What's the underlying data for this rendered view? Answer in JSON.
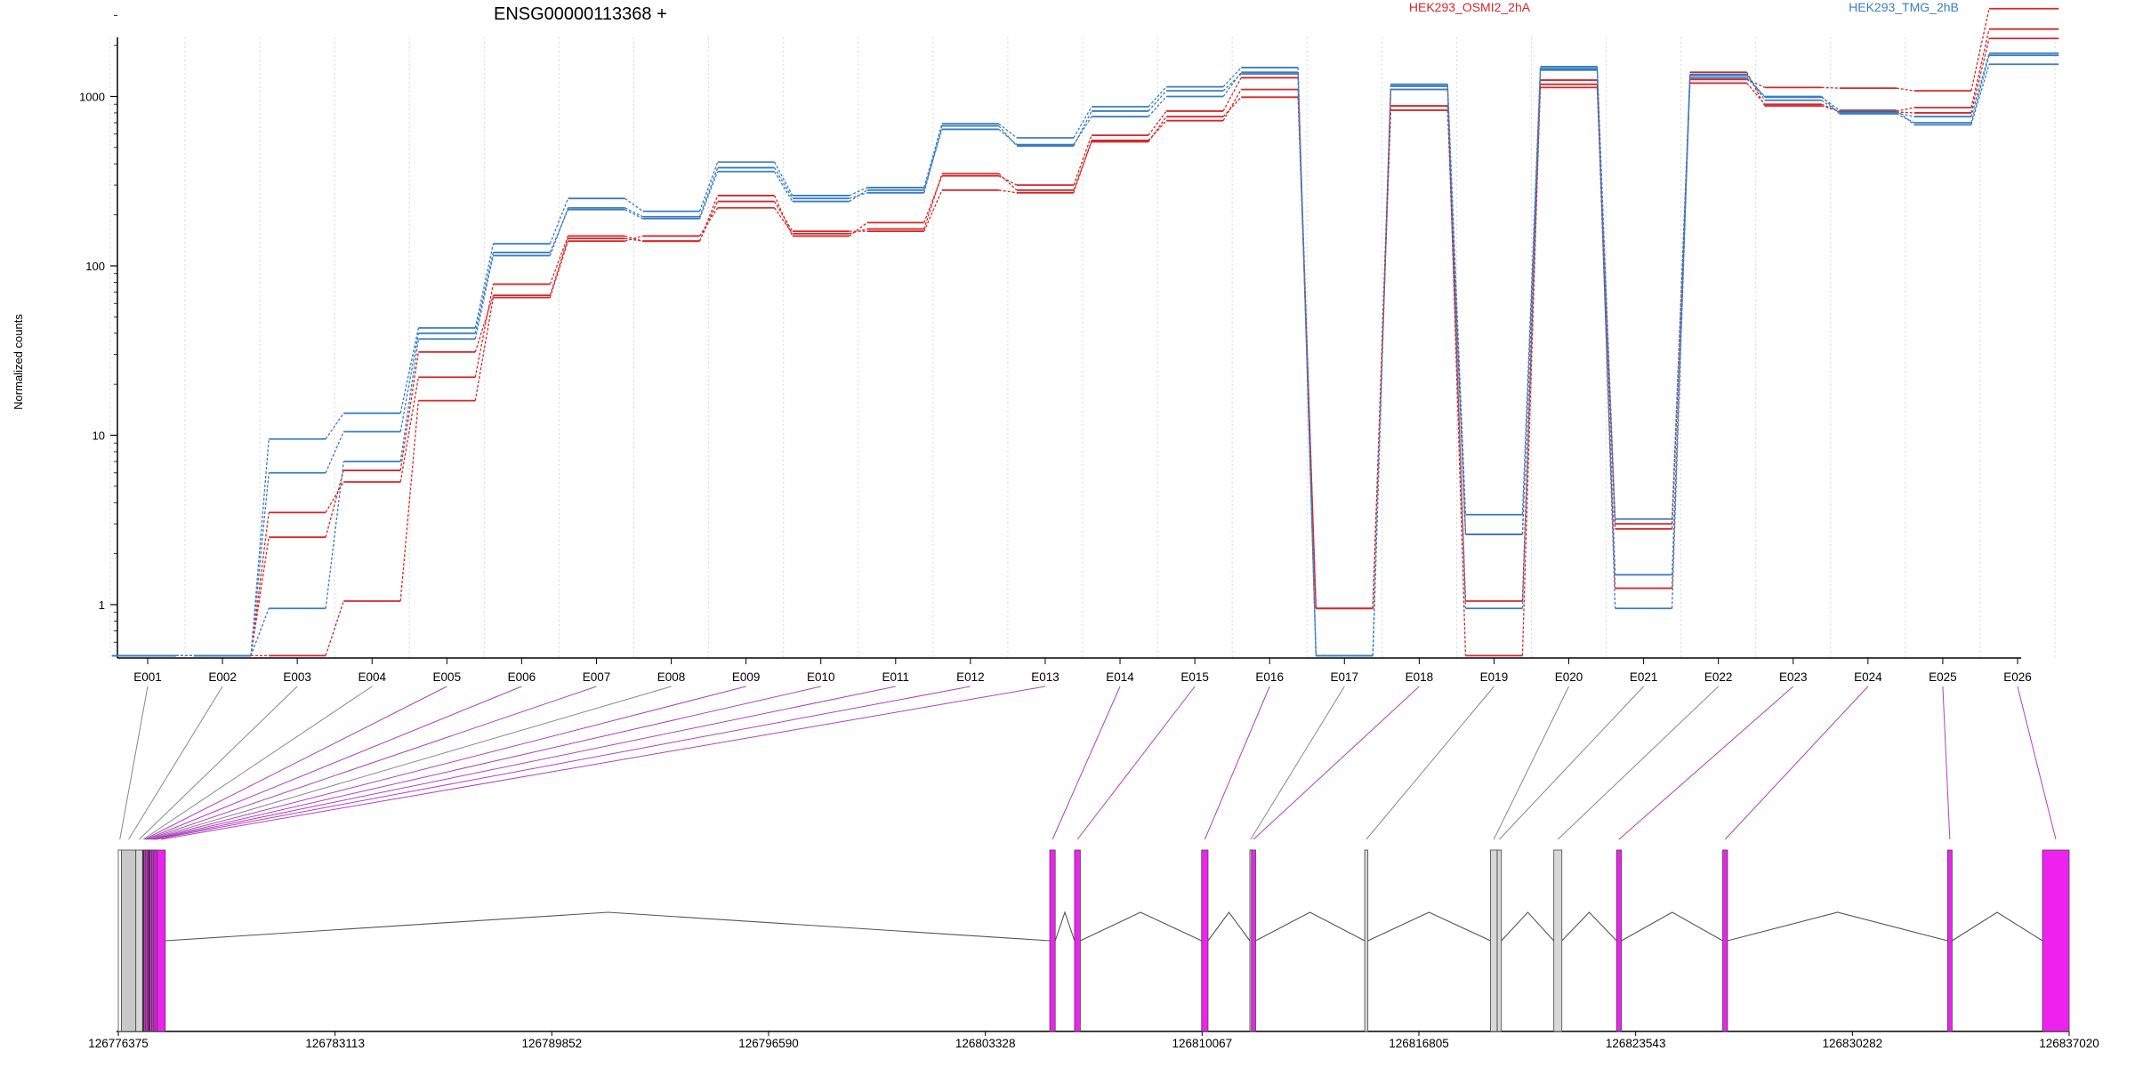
{
  "title": "ENSG00000113368 +",
  "chart_data": {
    "type": "line",
    "title": "ENSG00000113368 +",
    "xlabel": "",
    "ylabel": "Normalized counts",
    "yscale": "log",
    "ylim": [
      0.5,
      4000
    ],
    "yticks": [
      1,
      10,
      100,
      1000
    ],
    "ytick_labels": [
      "1",
      "10",
      "100",
      "1000"
    ],
    "grid_vertical": true,
    "legend": "top",
    "categories": [
      "E001",
      "E002",
      "E003",
      "E004",
      "E005",
      "E006",
      "E007",
      "E008",
      "E009",
      "E010",
      "E011",
      "E012",
      "E013",
      "E014",
      "E015",
      "E016",
      "E017",
      "E018",
      "E019",
      "E020",
      "E021",
      "E022",
      "E023",
      "E024",
      "E025",
      "E026"
    ],
    "series": [
      {
        "name": "HEK293_OSMI2_2hA",
        "group": "HEK293_OSMI2_2hA",
        "color": "#d62728",
        "values": [
          0.5,
          0.5,
          3.5,
          5.3,
          22,
          78,
          150,
          140,
          260,
          150,
          180,
          340,
          300,
          590,
          820,
          1290,
          0.95,
          1100,
          0.5,
          1250,
          2.8,
          1260,
          1130,
          1120,
          1080,
          3300
        ]
      },
      {
        "name": "",
        "group": "HEK293_OSMI2_2hA",
        "color": "#d62728",
        "values": [
          0.5,
          0.5,
          2.5,
          6.2,
          31,
          67,
          145,
          140,
          240,
          160,
          160,
          280,
          270,
          550,
          720,
          1100,
          0.95,
          880,
          1.05,
          1180,
          1.25,
          1390,
          880,
          820,
          860,
          2500
        ]
      },
      {
        "name": "",
        "group": "HEK293_OSMI2_2hA",
        "color": "#d62728",
        "values": [
          0.5,
          0.5,
          0.5,
          1.05,
          16,
          65,
          140,
          150,
          220,
          155,
          165,
          350,
          280,
          540,
          760,
          990,
          0.95,
          830,
          2.6,
          1130,
          3.0,
          1200,
          900,
          810,
          800,
          2200
        ]
      },
      {
        "name": "HEK293_TMG_2hB",
        "group": "HEK293_TMG_2hB",
        "color": "#3a7dc0",
        "values": [
          0.5,
          0.5,
          9.5,
          13.5,
          43,
          135,
          250,
          210,
          410,
          260,
          290,
          690,
          570,
          870,
          1140,
          1480,
          0.5,
          1180,
          3.4,
          1500,
          3.2,
          1350,
          950,
          800,
          760,
          1800
        ]
      },
      {
        "name": "",
        "group": "HEK293_TMG_2hB",
        "color": "#3a7dc0",
        "values": [
          0.5,
          0.5,
          6.0,
          10.5,
          40,
          120,
          215,
          190,
          360,
          240,
          280,
          640,
          520,
          760,
          1000,
          1390,
          0.5,
          1100,
          2.6,
          1430,
          1.5,
          1290,
          1000,
          790,
          700,
          1750
        ]
      },
      {
        "name": "",
        "group": "HEK293_TMG_2hB",
        "color": "#3a7dc0",
        "values": [
          0.5,
          0.5,
          0.95,
          7.0,
          37,
          115,
          220,
          195,
          380,
          250,
          270,
          670,
          510,
          820,
          1080,
          1360,
          0.5,
          1150,
          0.95,
          1460,
          0.95,
          1330,
          990,
          830,
          680,
          1550
        ]
      }
    ]
  },
  "gene_model": {
    "coordinate_labels": [
      "126776375",
      "126783113",
      "126789852",
      "126796590",
      "126803328",
      "126810067",
      "126816805",
      "126823543",
      "126830282",
      "126837020"
    ],
    "coord_min": 126776375,
    "coord_max": 126837020,
    "exons": [
      {
        "id": "E001",
        "start": 126776375,
        "end": 126776470,
        "color": "#ffffff"
      },
      {
        "id": "E002",
        "start": 126776470,
        "end": 126776920,
        "color": "#c8c8c8"
      },
      {
        "id": "E003",
        "start": 126776920,
        "end": 126777130,
        "color": "#d8d8d8"
      },
      {
        "id": "E004",
        "start": 126777130,
        "end": 126777170,
        "color": "#202020"
      },
      {
        "id": "E005",
        "start": 126777170,
        "end": 126777215,
        "color": "#ee22ee"
      },
      {
        "id": "E006",
        "start": 126777215,
        "end": 126777265,
        "color": "#ee22ee"
      },
      {
        "id": "E007",
        "start": 126777265,
        "end": 126777310,
        "color": "#ee22ee"
      },
      {
        "id": "E008",
        "start": 126777310,
        "end": 126777355,
        "color": "#202020"
      },
      {
        "id": "E009",
        "start": 126777355,
        "end": 126777410,
        "color": "#ee22ee"
      },
      {
        "id": "E010",
        "start": 126777410,
        "end": 126777460,
        "color": "#ee22ee"
      },
      {
        "id": "E011",
        "start": 126777460,
        "end": 126777510,
        "color": "#ee22ee"
      },
      {
        "id": "E012",
        "start": 126777510,
        "end": 126777580,
        "color": "#ee22ee"
      },
      {
        "id": "E013",
        "start": 126777580,
        "end": 126777835,
        "color": "#ee22ee"
      },
      {
        "id": "E014",
        "start": 126805330,
        "end": 126805500,
        "color": "#ee22ee"
      },
      {
        "id": "E015",
        "start": 126806100,
        "end": 126806280,
        "color": "#ee22ee"
      },
      {
        "id": "E016",
        "start": 126810050,
        "end": 126810250,
        "color": "#ee22ee"
      },
      {
        "id": "E017",
        "start": 126811550,
        "end": 126811600,
        "color": "#d8d8d8"
      },
      {
        "id": "E018",
        "start": 126811600,
        "end": 126811730,
        "color": "#ee22ee"
      },
      {
        "id": "E019",
        "start": 126815120,
        "end": 126815220,
        "color": "#d8d8d8"
      },
      {
        "id": "E020",
        "start": 126819030,
        "end": 126819240,
        "color": "#d8d8d8"
      },
      {
        "id": "E021",
        "start": 126819240,
        "end": 126819370,
        "color": "#d8d8d8"
      },
      {
        "id": "E022",
        "start": 126821000,
        "end": 126821250,
        "color": "#d8d8d8"
      },
      {
        "id": "E023",
        "start": 126822950,
        "end": 126823100,
        "color": "#ee22ee"
      },
      {
        "id": "E024",
        "start": 126826250,
        "end": 126826400,
        "color": "#ee22ee"
      },
      {
        "id": "E025",
        "start": 126833240,
        "end": 126833380,
        "color": "#ee22ee"
      },
      {
        "id": "E026",
        "start": 126836190,
        "end": 126837020,
        "color": "#ee22ee"
      }
    ],
    "introns": [
      [
        126777835,
        126805330,
        126791600
      ],
      [
        126805500,
        126806100,
        126805800
      ],
      [
        126806280,
        126810050,
        126808150
      ],
      [
        126810250,
        126811550,
        126810900
      ],
      [
        126811730,
        126815120,
        126813420
      ],
      [
        126815220,
        126819030,
        126817120
      ],
      [
        126819370,
        126821000,
        126820190
      ],
      [
        126821250,
        126822950,
        126822100
      ],
      [
        126823100,
        126826250,
        126824680
      ],
      [
        126826400,
        126833240,
        126829820
      ],
      [
        126833380,
        126836190,
        126834780
      ]
    ]
  }
}
